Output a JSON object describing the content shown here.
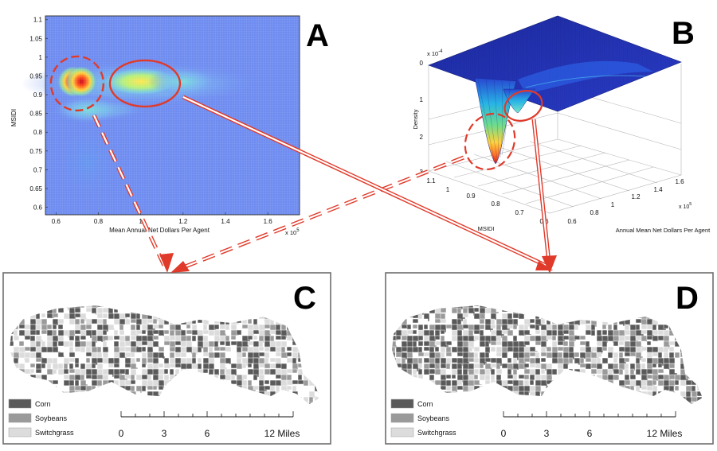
{
  "panel_letters": {
    "a": "A",
    "b": "B",
    "c": "C",
    "d": "D"
  },
  "chart_data": [
    {
      "type": "heatmap",
      "panel": "A",
      "xlabel": "Mean Annual Net Dollars Per Agent",
      "ylabel": "MSIDI",
      "x_exponent": "x 10",
      "x_exponent_power": "5",
      "xlim": [
        0.55,
        1.75
      ],
      "ylim": [
        0.58,
        1.11
      ],
      "x_ticks": [
        0.6,
        0.8,
        1.0,
        1.2,
        1.4,
        1.6
      ],
      "x_tick_labels": [
        "0.6",
        "0.8",
        "1",
        "1.2",
        "1.4",
        "1.6"
      ],
      "y_ticks": [
        0.6,
        0.65,
        0.7,
        0.75,
        0.8,
        0.85,
        0.9,
        0.95,
        1.0,
        1.05,
        1.1
      ],
      "y_tick_labels": [
        "0.6",
        "0.65",
        "0.7",
        "0.75",
        "0.8",
        "0.85",
        "0.9",
        "0.95",
        "1",
        "1.05",
        "1.1"
      ],
      "grid": true,
      "density_peaks": [
        {
          "x": 0.68,
          "y": 0.935,
          "intensity": 1.0
        },
        {
          "x": 0.72,
          "y": 0.935,
          "intensity": 0.9
        },
        {
          "x": 1.0,
          "y": 0.935,
          "intensity": 0.55
        },
        {
          "x": 1.2,
          "y": 0.935,
          "intensity": 0.35
        },
        {
          "x": 0.75,
          "y": 0.86,
          "intensity": 0.35
        }
      ],
      "highlights": [
        {
          "cx": 0.7,
          "cy": 0.93,
          "style": "dashed"
        },
        {
          "cx": 1.02,
          "cy": 0.93,
          "style": "solid"
        }
      ]
    },
    {
      "type": "surface",
      "panel": "B",
      "zlabel": "Density",
      "xlabel": "Annual Mean Net Dollars Per Agent",
      "ylabel": "MSIDI",
      "z_exponent": "x 10",
      "z_exponent_power": "-4",
      "x_exponent": "x 10",
      "x_exponent_power": "5",
      "z_tick_labels": [
        "0",
        "1",
        "2",
        "3"
      ],
      "y_tick_labels": [
        "1.1",
        "1",
        "0.9",
        "0.8",
        "0.7",
        "0.6"
      ],
      "x_tick_labels": [
        "0.6",
        "0.8",
        "1",
        "1.2",
        "1.4",
        "1.6"
      ],
      "grid": true
    }
  ],
  "maps": [
    {
      "panel": "C",
      "legend": [
        {
          "label": "Corn",
          "color": "#5a5a5a"
        },
        {
          "label": "Soybeans",
          "color": "#9a9a9a"
        },
        {
          "label": "Switchgrass",
          "color": "#dcdcdc"
        }
      ],
      "scale_labels": [
        "0",
        "3",
        "6",
        "12 Miles"
      ]
    },
    {
      "panel": "D",
      "legend": [
        {
          "label": "Corn",
          "color": "#5a5a5a"
        },
        {
          "label": "Soybeans",
          "color": "#9a9a9a"
        },
        {
          "label": "Switchgrass",
          "color": "#dcdcdc"
        }
      ],
      "scale_labels": [
        "0",
        "3",
        "6",
        "12 Miles"
      ]
    }
  ],
  "colors": {
    "annotation": "#e03a2a",
    "frame": "#6e6e6e"
  }
}
